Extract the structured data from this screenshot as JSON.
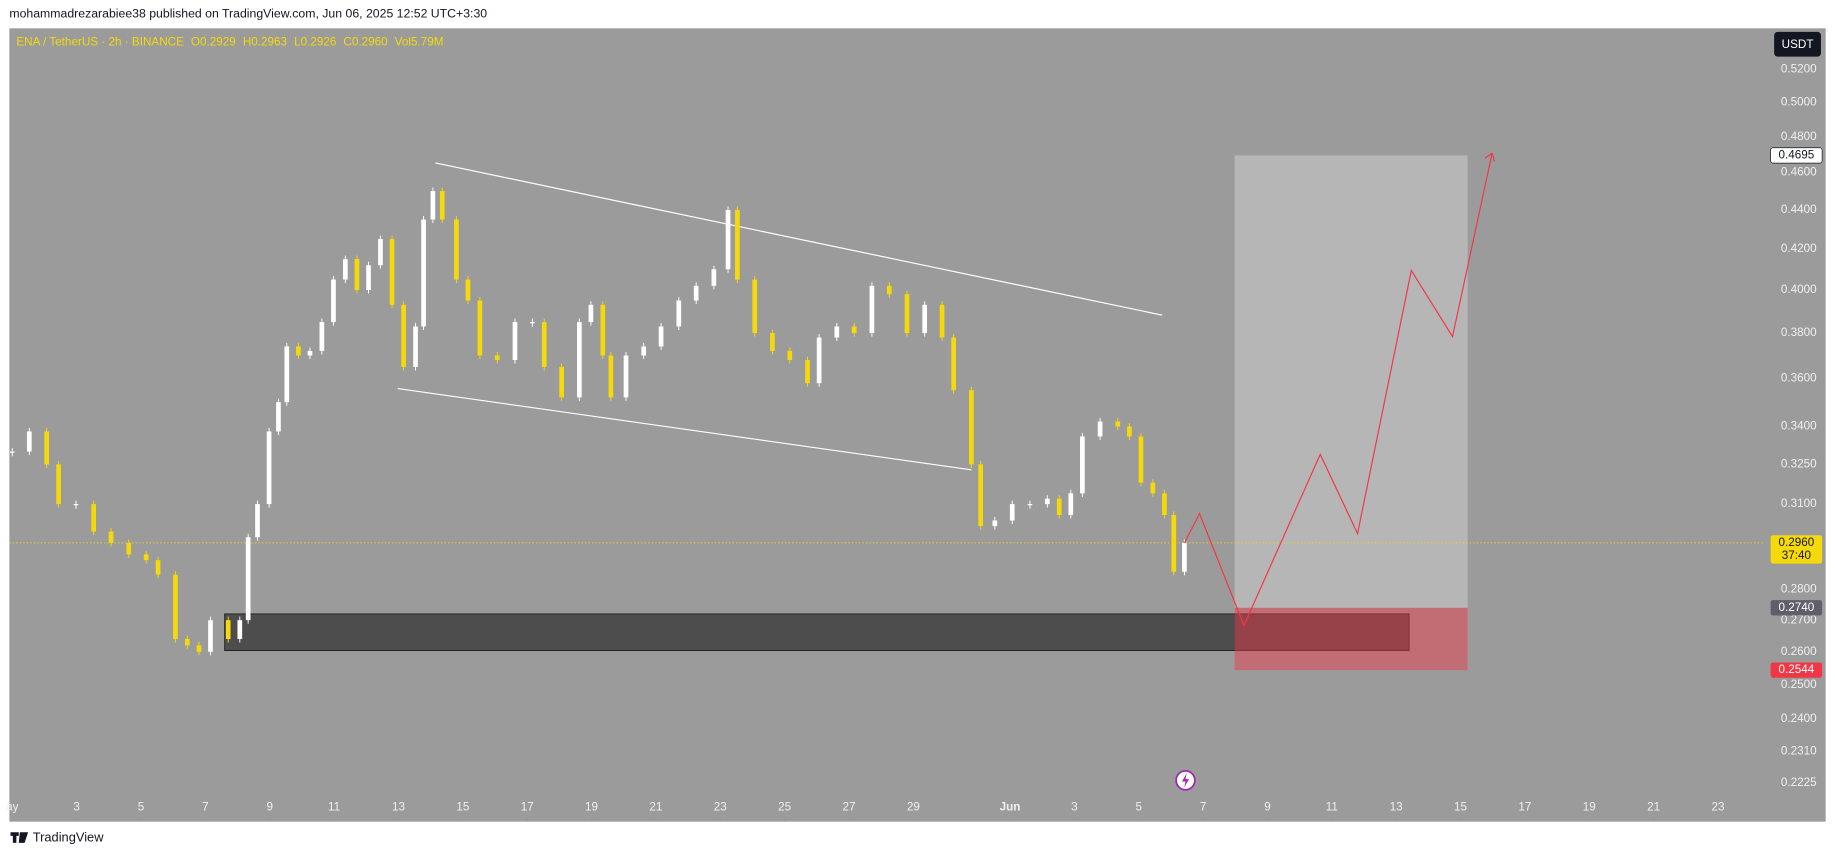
{
  "header": {
    "publisher": "mohammadrezarabiee38 published on TradingView.com, Jun 06, 2025 12:52 UTC+3:30",
    "brand": "TradingView"
  },
  "chart_data": {
    "type": "candlestick",
    "symbol": "ENA / TetherUS · 2h · BINANCE",
    "legend": [
      "O0.2929",
      "H0.2963",
      "L0.2926",
      "C0.2960",
      "Vol5.79M"
    ],
    "currency": "USDT",
    "log_scale": true,
    "color_up": "#ffffff",
    "color_down": "#f5d90a",
    "x": [
      0,
      0.53,
      1.07,
      1.44,
      1.98,
      2.53,
      3.07,
      3.62,
      4.16,
      4.53,
      5.07,
      5.44,
      5.8,
      6.16,
      6.71,
      7.07,
      7.33,
      7.62,
      7.98,
      8.27,
      8.53,
      8.89,
      9.25,
      9.62,
      9.98,
      10.35,
      10.71,
      11.07,
      11.44,
      11.8,
      12.16,
      12.53,
      12.78,
      13.07,
      13.36,
      13.8,
      14.16,
      14.53,
      15.07,
      15.62,
      16.16,
      16.53,
      17.07,
      17.62,
      17.98,
      18.35,
      18.6,
      19.07,
      19.62,
      20.16,
      20.71,
      21.25,
      21.8,
      22.24,
      22.53,
      23.07,
      23.62,
      24.16,
      24.71,
      25.07,
      25.62,
      26.16,
      26.71,
      27.25,
      27.8,
      28.35,
      28.89,
      29.25,
      29.8,
      30.09,
      30.53,
      31.07,
      31.62,
      32.16,
      32.53,
      32.89,
      33.25,
      33.8,
      34.35,
      34.71,
      35.07,
      35.44,
      35.8,
      36.09,
      36.42
    ],
    "values": [
      0.33,
      0.338,
      0.325,
      0.31,
      0.31,
      0.3,
      0.296,
      0.292,
      0.29,
      0.285,
      0.264,
      0.262,
      0.26,
      0.27,
      0.264,
      0.27,
      0.298,
      0.31,
      0.338,
      0.35,
      0.374,
      0.37,
      0.372,
      0.385,
      0.405,
      0.415,
      0.4,
      0.412,
      0.425,
      0.393,
      0.365,
      0.383,
      0.435,
      0.45,
      0.435,
      0.405,
      0.395,
      0.37,
      0.368,
      0.385,
      0.385,
      0.365,
      0.352,
      0.385,
      0.393,
      0.37,
      0.352,
      0.37,
      0.374,
      0.383,
      0.395,
      0.402,
      0.41,
      0.44,
      0.405,
      0.38,
      0.372,
      0.368,
      0.358,
      0.378,
      0.383,
      0.38,
      0.402,
      0.398,
      0.38,
      0.393,
      0.378,
      0.355,
      0.325,
      0.302,
      0.304,
      0.31,
      0.31,
      0.312,
      0.306,
      0.314,
      0.336,
      0.342,
      0.34,
      0.336,
      0.318,
      0.314,
      0.306,
      0.286,
      0.296
    ],
    "xlim": [
      -0.09,
      54.38
    ],
    "xticks": [
      {
        "value": 0,
        "label": "ay"
      },
      {
        "value": 2,
        "label": "3"
      },
      {
        "value": 4,
        "label": "5"
      },
      {
        "value": 6,
        "label": "7"
      },
      {
        "value": 8,
        "label": "9"
      },
      {
        "value": 10,
        "label": "11"
      },
      {
        "value": 12,
        "label": "13"
      },
      {
        "value": 14,
        "label": "15"
      },
      {
        "value": 16,
        "label": "17"
      },
      {
        "value": 18,
        "label": "19"
      },
      {
        "value": 20,
        "label": "21"
      },
      {
        "value": 22,
        "label": "23"
      },
      {
        "value": 24,
        "label": "25"
      },
      {
        "value": 26,
        "label": "27"
      },
      {
        "value": 28,
        "label": "29"
      },
      {
        "value": 31,
        "label": "Jun"
      },
      {
        "value": 33,
        "label": "3"
      },
      {
        "value": 35,
        "label": "5"
      },
      {
        "value": 37,
        "label": "7"
      },
      {
        "value": 39,
        "label": "9"
      },
      {
        "value": 41,
        "label": "11"
      },
      {
        "value": 43,
        "label": "13"
      },
      {
        "value": 45,
        "label": "15"
      },
      {
        "value": 47,
        "label": "17"
      },
      {
        "value": 49,
        "label": "19"
      },
      {
        "value": 51,
        "label": "21"
      },
      {
        "value": 53,
        "label": "23"
      }
    ],
    "ylim": [
      0.2133,
      0.5462
    ],
    "yticks": [
      {
        "value": 0.52,
        "label": "0.5200"
      },
      {
        "value": 0.5,
        "label": "0.5000"
      },
      {
        "value": 0.48,
        "label": "0.4800"
      },
      {
        "value": 0.46,
        "label": "0.4600"
      },
      {
        "value": 0.44,
        "label": "0.4400"
      },
      {
        "value": 0.42,
        "label": "0.4200"
      },
      {
        "value": 0.4,
        "label": "0.4000"
      },
      {
        "value": 0.38,
        "label": "0.3800"
      },
      {
        "value": 0.36,
        "label": "0.3600"
      },
      {
        "value": 0.34,
        "label": "0.3400"
      },
      {
        "value": 0.325,
        "label": "0.3250"
      },
      {
        "value": 0.31,
        "label": "0.3100"
      },
      {
        "value": 0.28,
        "label": "0.2800"
      },
      {
        "value": 0.27,
        "label": "0.2700"
      },
      {
        "value": 0.26,
        "label": "0.2600"
      },
      {
        "value": 0.25,
        "label": "0.2500"
      },
      {
        "value": 0.24,
        "label": "0.2400"
      },
      {
        "value": 0.231,
        "label": "0.2310"
      },
      {
        "value": 0.2225,
        "label": "0.2225"
      }
    ],
    "price_labels": [
      {
        "value": 0.4695,
        "label": "0.4695",
        "color": "#ffffff",
        "text_color": "#131722"
      },
      {
        "value": 0.296,
        "label": "0.2960",
        "sub": "37:40",
        "color": "#f5d90a",
        "text_color": "#131722"
      },
      {
        "value": 0.274,
        "label": "0.2740",
        "color": "#5d606b",
        "text_color": "#ffffff"
      },
      {
        "value": 0.2544,
        "label": "0.2544",
        "color": "#f23645",
        "text_color": "#ffffff"
      }
    ],
    "last_price": 0.296,
    "channel": [
      {
        "x": [
          13.15,
          35.73
        ],
        "y": [
          0.4653,
          0.3882
        ],
        "color": "#ffffff"
      },
      {
        "x": [
          11.98,
          29.8
        ],
        "y": [
          0.3557,
          0.3229
        ],
        "color": "#ffffff"
      }
    ],
    "zone": {
      "x": [
        6.6,
        43.4
      ],
      "y": [
        0.2604,
        0.272
      ],
      "color": "#4d4d4d"
    },
    "position": {
      "x": [
        37.98,
        45.22
      ],
      "entry": 0.274,
      "target": 0.4695,
      "stop": 0.2544
    },
    "projection": {
      "x": [
        36.42,
        36.89,
        38.27,
        40.64,
        41.8,
        43.47,
        44.75,
        45.98
      ],
      "y": [
        0.296,
        0.3065,
        0.2683,
        0.3289,
        0.2993,
        0.4094,
        0.3784,
        0.4707
      ],
      "color": "#f23645"
    }
  }
}
